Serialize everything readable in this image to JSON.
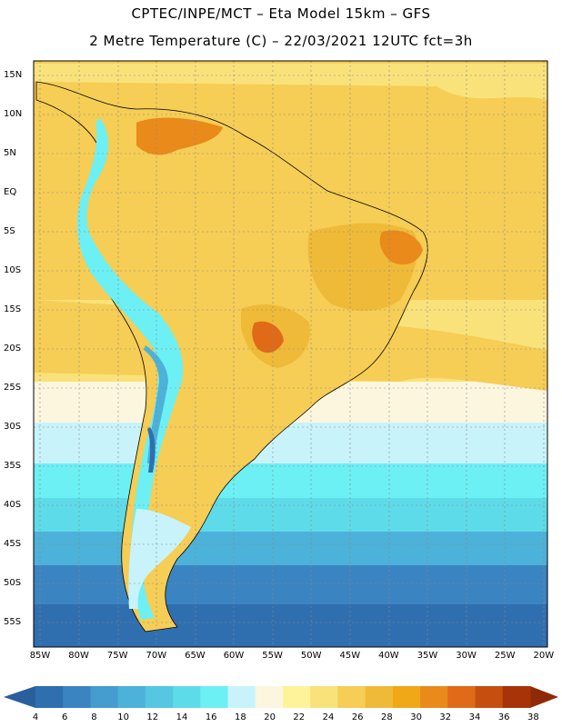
{
  "header": {
    "line1": "CPTEC/INPE/MCT –  Eta Model 15km – GFS",
    "line2": "2 Metre Temperature (C) – 22/03/2021 12UTC fct=3h"
  },
  "axes": {
    "lat_labels": [
      "15N",
      "10N",
      "5N",
      "EQ",
      "5S",
      "10S",
      "15S",
      "20S",
      "25S",
      "30S",
      "35S",
      "40S",
      "45S",
      "50S",
      "55S"
    ],
    "lon_labels": [
      "85W",
      "80W",
      "75W",
      "70W",
      "65W",
      "60W",
      "55W",
      "50W",
      "45W",
      "40W",
      "35W",
      "30W",
      "25W",
      "20W"
    ]
  },
  "colorbar": {
    "ticks": [
      "4",
      "6",
      "8",
      "10",
      "12",
      "14",
      "16",
      "18",
      "20",
      "22",
      "24",
      "26",
      "28",
      "30",
      "32",
      "34",
      "36",
      "38"
    ],
    "colors": [
      "#2f6fb0",
      "#3b84c2",
      "#449ccf",
      "#4cb2d9",
      "#55c7e1",
      "#5edbe8",
      "#6cf0f4",
      "#c8f3fb",
      "#fdf6df",
      "#fff39a",
      "#f9e27a",
      "#f6cd55",
      "#efba38",
      "#f0a818",
      "#e98a1b",
      "#e06a18",
      "#c64f10",
      "#a83308"
    ]
  }
}
